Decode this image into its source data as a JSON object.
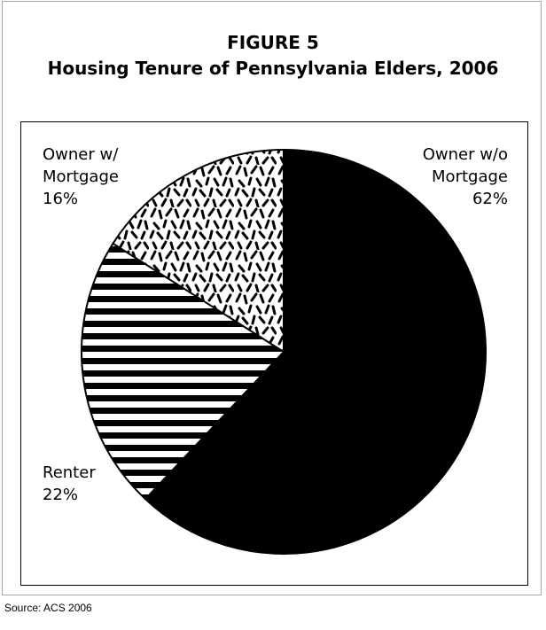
{
  "figure": {
    "number": "FIGURE 5",
    "title": "Housing Tenure of Pennsylvania Elders, 2006"
  },
  "source": "Source: ACS 2006",
  "chart_data": {
    "type": "pie",
    "title": "Housing Tenure of Pennsylvania Elders, 2006",
    "start": "12 o'clock",
    "direction": "clockwise",
    "slices": [
      {
        "name_lines": [
          "Owner w/o",
          "Mortgage"
        ],
        "value": 62,
        "value_label": "62%",
        "fill": "solid-black"
      },
      {
        "name_lines": [
          "Renter"
        ],
        "value": 22,
        "value_label": "22%",
        "fill": "horizontal-stripes"
      },
      {
        "name_lines": [
          "Owner w/",
          "Mortgage"
        ],
        "value": 16,
        "value_label": "16%",
        "fill": "confetti-dashes"
      }
    ],
    "colors": {
      "ink": "#000000",
      "paper": "#ffffff",
      "frame": "#a6a6a6"
    }
  }
}
